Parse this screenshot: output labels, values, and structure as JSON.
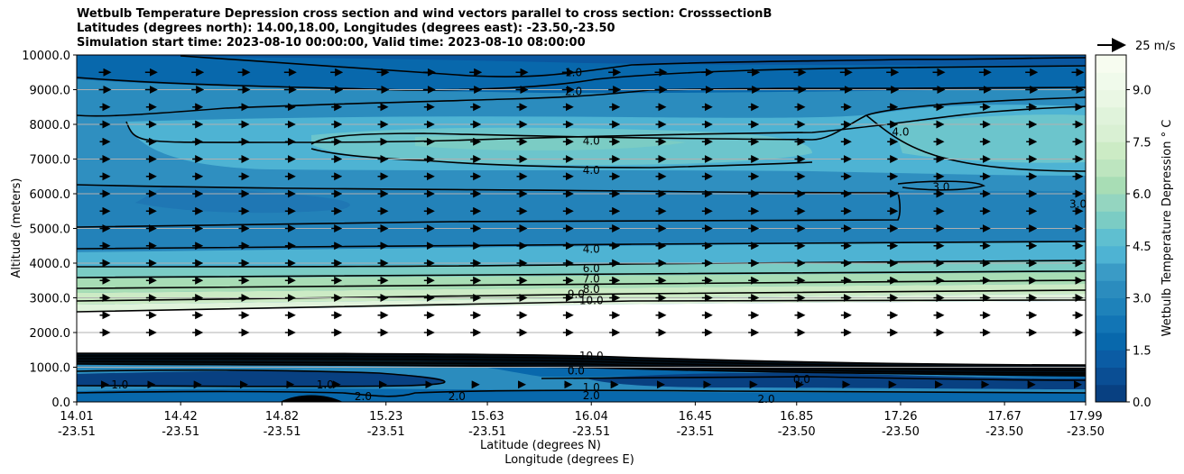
{
  "chart_data": {
    "type": "contour",
    "title_lines": [
      "Wetbulb Temperature Depression cross section and wind vectors parallel to cross section: CrosssectionB",
      "Latitudes (degrees north): 14.00,18.00, Longitudes (degrees east): -23.50,-23.50",
      "Simulation start time: 2023-08-10 00:00:00, Valid time: 2023-08-10 08:00:00"
    ],
    "ylabel": "Altitude (meters)",
    "xlabel_lat": "Latitude (degrees N)",
    "xlabel_lon": "Longitude (degrees E)",
    "ylim": [
      0,
      10000
    ],
    "yticks": [
      "0.0",
      "1000.0",
      "2000.0",
      "3000.0",
      "4000.0",
      "5000.0",
      "6000.0",
      "7000.0",
      "8000.0",
      "9000.0",
      "10000.0"
    ],
    "xticks_lat": [
      "14.01",
      "14.42",
      "14.82",
      "15.23",
      "15.63",
      "16.04",
      "16.45",
      "16.85",
      "17.26",
      "17.67",
      "17.99"
    ],
    "xticks_lon": [
      "-23.51",
      "-23.51",
      "-23.51",
      "-23.51",
      "-23.51",
      "-23.51",
      "-23.51",
      "-23.50",
      "-23.50",
      "-23.50",
      "-23.50"
    ],
    "colorbar": {
      "label": "Wetbulb Temperature Depression ° C",
      "range": [
        0,
        10
      ],
      "ticks": [
        "0.0",
        "1.5",
        "3.0",
        "4.5",
        "6.0",
        "7.5",
        "9.0"
      ],
      "colormap": "GnBu_r"
    },
    "quiver_key": "25 m/s",
    "contour_levels_labeled": [
      "1.0",
      "2.0",
      "3.0",
      "4.0",
      "6.0",
      "7.0",
      "8.0",
      "9.0",
      "10.0"
    ],
    "contour_labels": [
      {
        "text": "1.0",
        "x": 15.97,
        "y": 9500
      },
      {
        "text": "2.0",
        "x": 15.97,
        "y": 8950
      },
      {
        "text": "4.0",
        "x": 16.04,
        "y": 7520
      },
      {
        "text": "4.0",
        "x": 16.04,
        "y": 6680
      },
      {
        "text": "4.0",
        "x": 17.26,
        "y": 7780
      },
      {
        "text": "3.0",
        "x": 17.42,
        "y": 6200
      },
      {
        "text": "3.0",
        "x": 17.96,
        "y": 5700
      },
      {
        "text": "4.0",
        "x": 16.04,
        "y": 4400
      },
      {
        "text": "6.0",
        "x": 16.04,
        "y": 3850
      },
      {
        "text": "7.0",
        "x": 16.04,
        "y": 3550
      },
      {
        "text": "8.0",
        "x": 16.04,
        "y": 3250
      },
      {
        "text": "9.0",
        "x": 15.98,
        "y": 3100
      },
      {
        "text": "10.0",
        "x": 16.04,
        "y": 2920
      },
      {
        "text": "1.0",
        "x": 14.18,
        "y": 500
      },
      {
        "text": "1.0",
        "x": 14.99,
        "y": 500
      },
      {
        "text": "2.0",
        "x": 15.14,
        "y": 150
      },
      {
        "text": "2.0",
        "x": 15.51,
        "y": 150
      },
      {
        "text": "10.0",
        "x": 16.04,
        "y": 1320
      },
      {
        "text": "0.0",
        "x": 15.98,
        "y": 900
      },
      {
        "text": "1.0",
        "x": 16.04,
        "y": 420
      },
      {
        "text": "2.0",
        "x": 16.04,
        "y": 180
      },
      {
        "text": "0.0",
        "x": 16.87,
        "y": 650
      },
      {
        "text": "2.0",
        "x": 16.73,
        "y": 80
      }
    ]
  }
}
